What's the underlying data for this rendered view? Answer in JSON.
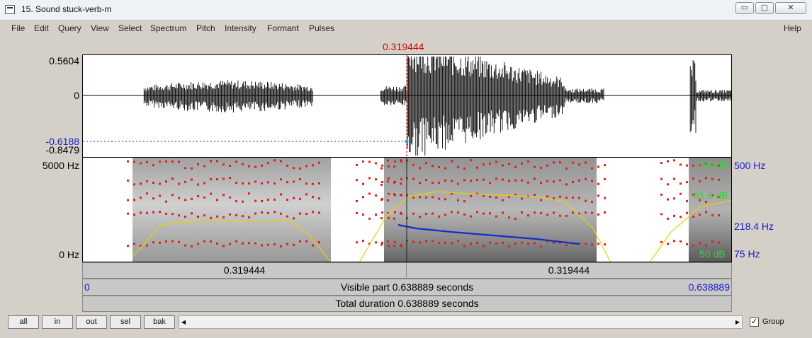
{
  "window": {
    "title": "15. Sound stuck-verb-m",
    "minimize_glyph": "▭",
    "maximize_glyph": "▢",
    "close_glyph": "✕"
  },
  "menu": {
    "items": [
      "File",
      "Edit",
      "Query",
      "View",
      "Select",
      "Spectrum",
      "Pitch",
      "Intensity",
      "Formant",
      "Pulses"
    ],
    "help": "Help"
  },
  "cursor": {
    "time_label": "0.319444"
  },
  "waveform": {
    "y_max": "0.5604",
    "y_zero": "0",
    "y_cursor_value": "-0.6188",
    "y_min": "-0.8479"
  },
  "spectrogram": {
    "freq_top": "5000 Hz",
    "freq_bottom": "0 Hz",
    "intensity_top": "100 dB",
    "intensity_value": "81.8 dB",
    "intensity_bottom": "50 dB",
    "pitch_top": "500 Hz",
    "pitch_value": "218.4 Hz",
    "pitch_bottom": "75 Hz"
  },
  "time_bars": {
    "left_segment": "0.319444",
    "right_segment": "0.319444",
    "visible_start": "0",
    "visible_label": "Visible part 0.638889 seconds",
    "visible_end": "0.638889",
    "total_label": "Total duration 0.638889 seconds"
  },
  "controls": {
    "all": "all",
    "in": "in",
    "out": "out",
    "sel": "sel",
    "bak": "bak",
    "scroll_left_glyph": "◂",
    "scroll_right_glyph": "▸",
    "group_label": "Group",
    "group_checked_glyph": "✓"
  },
  "colors": {
    "cursor": "#d40000",
    "formant": "#e02020",
    "pitch": "#1030c0",
    "intensity": "#e6d400",
    "intensity_label": "#3ccf3c",
    "pitch_label": "#1a1acc"
  },
  "icons": [
    "app-icon",
    "minimize-icon",
    "maximize-icon",
    "close-icon",
    "scroll-left-icon",
    "scroll-right-icon",
    "checkbox-checked-icon"
  ]
}
